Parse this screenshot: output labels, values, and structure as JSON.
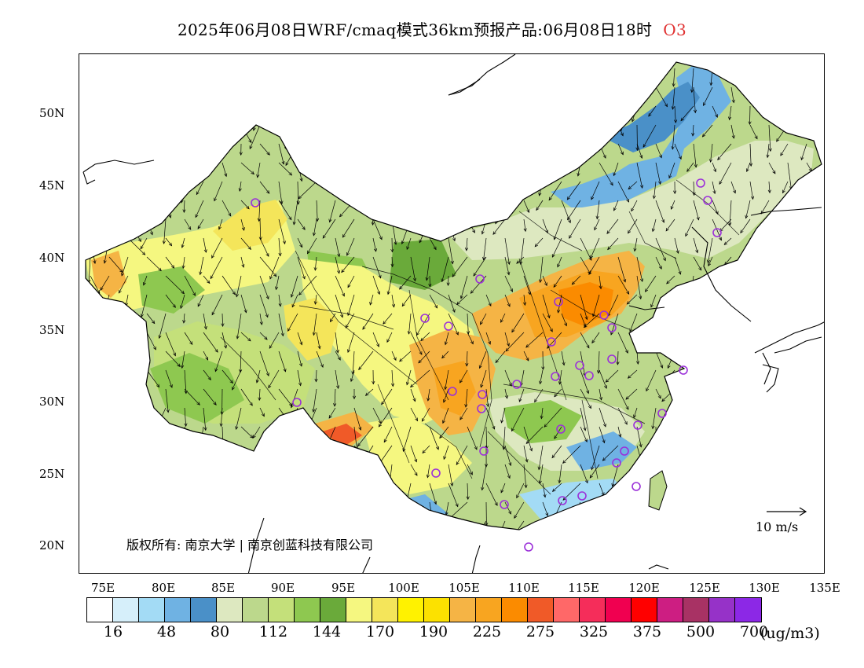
{
  "header": {
    "title": "2025年06月08日WRF/cmaq模式36km预报产品:06月08日18时",
    "species": "O3"
  },
  "axes": {
    "lat_labels": [
      "50N",
      "45N",
      "40N",
      "35N",
      "30N",
      "25N",
      "20N"
    ],
    "lon_labels": [
      "75E",
      "80E",
      "85E",
      "90E",
      "95E",
      "100E",
      "105E",
      "110E",
      "115E",
      "120E",
      "125E",
      "130E",
      "135E"
    ]
  },
  "copyright": "版权所有: 南京大学 | 南京创蓝科技有限公司",
  "wind_reference": {
    "label": "10  m/s"
  },
  "legend": {
    "colors": [
      "#ffffff",
      "#d6effa",
      "#a3dbf5",
      "#6fb2e3",
      "#4a90c8",
      "#dde8c0",
      "#bcd88c",
      "#c4e07a",
      "#8ec850",
      "#6aaa3a",
      "#f5f780",
      "#f4e55a",
      "#fff200",
      "#fce100",
      "#f5b445",
      "#f8a520",
      "#fb8b00",
      "#f05a28",
      "#ff6868",
      "#f52d5a",
      "#f00050",
      "#ff0000",
      "#cd1e82",
      "#a83264",
      "#9632c8",
      "#8c28e6"
    ],
    "tick_labels": [
      "16",
      "48",
      "80",
      "112",
      "144",
      "170",
      "190",
      "225",
      "275",
      "325",
      "375",
      "500",
      "700"
    ],
    "unit": "(ug/m3)"
  },
  "stations": {
    "marker": "circle",
    "color": "#9b30d9",
    "count": 33
  }
}
